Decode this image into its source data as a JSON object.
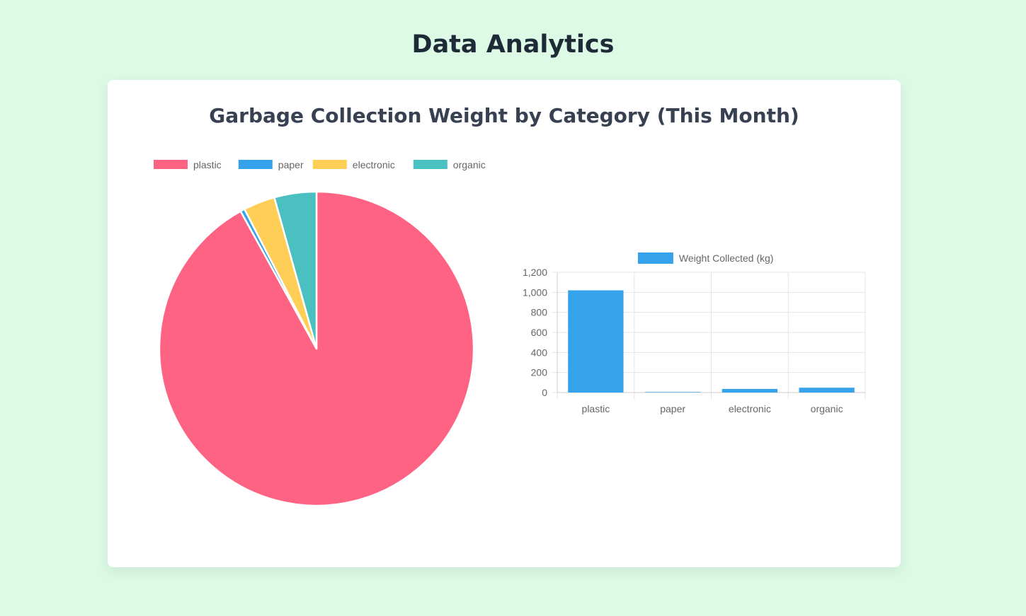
{
  "page": {
    "title": "Data Analytics"
  },
  "card": {
    "title": "Garbage Collection Weight by Category (This Month)"
  },
  "colors": {
    "background": "#dcfae6",
    "plastic": "#ff6384",
    "paper": "#36a2eb",
    "electronic": "#ffce56",
    "organic": "#4bc0c0",
    "bar": "#36a2eb",
    "grid": "#e5e5e5",
    "text": "#666666"
  },
  "chart_data": [
    {
      "type": "pie",
      "legend_position": "top",
      "categories": [
        "plastic",
        "paper",
        "electronic",
        "organic"
      ],
      "values": [
        1020,
        5,
        36,
        48
      ],
      "colors": [
        "#ff6384",
        "#36a2eb",
        "#ffce56",
        "#4bc0c0"
      ]
    },
    {
      "type": "bar",
      "legend_position": "top",
      "categories": [
        "plastic",
        "paper",
        "electronic",
        "organic"
      ],
      "series": [
        {
          "name": "Weight Collected (kg)",
          "values": [
            1020,
            5,
            36,
            48
          ]
        }
      ],
      "ylim": [
        0,
        1200
      ],
      "yticks": [
        "0",
        "200",
        "400",
        "600",
        "800",
        "1,000",
        "1,200"
      ],
      "ytick_values": [
        0,
        200,
        400,
        600,
        800,
        1000,
        1200
      ],
      "grid": true
    }
  ]
}
